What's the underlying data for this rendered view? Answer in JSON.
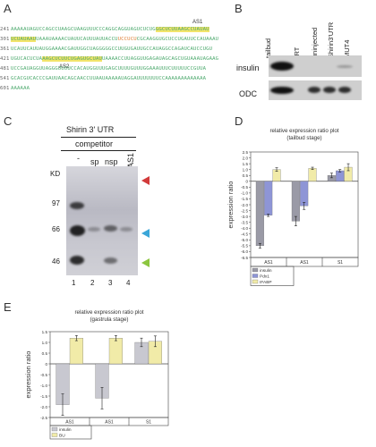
{
  "panels": {
    "A": {
      "letter": "A",
      "as1_label": "AS1",
      "as2_label": "AS2",
      "lines": [
        {
          "num": "241",
          "pre": "AAAAAUAGUCCAGCCUAAGCUAAGUUUCCCAGGCAGGUAGUCUCUG",
          "hl": "GGCUCUUAAGCCUAUAU",
          "post": ""
        },
        {
          "num": "301",
          "pre": "",
          "hl": "UCUAUAAU",
          "post": "UAAAUAAAACUAUUCAUUUAUUACCU",
          "orange": "UCCUCU",
          "post2": "CGCAAGGUGCUCCUGAUUCCAUAAAU"
        },
        {
          "num": "361",
          "pre": "UCAUUCAUUAUGGAAAACGAUUGGCUAGGGGGCCUUGUGAUUGCCAUAGGCCAGAUCAUCCUGU",
          "hl": "",
          "post": ""
        },
        {
          "num": "421",
          "pre": "UGUCACUCUA",
          "hl": "AAGCUCUUCUGAGUGCUAU",
          "post": "UAAAACCUUAGGUUGAGAUAGCAGCUGUAAAUAGAAG"
        },
        {
          "num": "481",
          "pre": "UCCGAUAGGUUAGGGUUUUCCACAUGGUUUGAGCUUUUGUUUGGAAAUUUCUUUUUCCGUUA",
          "hl": "",
          "post": ""
        },
        {
          "num": "541",
          "pre": "GCACGUCACCCGAUUAACAGCAACCUUAAUAAAAAUAGGAUUUUUUUCCAAAAAAAAAAAAA",
          "hl": "",
          "post": ""
        },
        {
          "num": "601",
          "pre": "AAAAAA",
          "hl": "",
          "post": ""
        }
      ]
    },
    "B": {
      "letter": "B",
      "lanes": [
        "tailbud",
        "-RT",
        "uninjected",
        "Shirin3'UTR",
        "MUT4"
      ],
      "rows": [
        "insulin",
        "ODC"
      ]
    },
    "C": {
      "letter": "C",
      "header": "Shirin 3' UTR",
      "subheader": "competitor",
      "lanes": [
        "-",
        "sp",
        "nsp",
        "AS1"
      ],
      "kd": "KD",
      "markers": [
        "97",
        "66",
        "46"
      ],
      "lane_numbers": [
        "1",
        "2",
        "3",
        "4"
      ],
      "arrow_colors": [
        "#d23a3a",
        "#3aa6d8",
        "#8cc63f"
      ]
    },
    "D": {
      "letter": "D",
      "chart_data": {
        "type": "bar",
        "title": "relative expression ratio plot",
        "subtitle": "(tailbud stage)",
        "ylabel": "expression ratio",
        "categories": [
          "AS1",
          "AS1",
          "S1"
        ],
        "ylim": [
          -6.5,
          2.5
        ],
        "yticks": [
          "2.5",
          "2.0",
          "1.5",
          "1.0",
          "0.5",
          "0",
          "-0.5",
          "-1.0",
          "-1.5",
          "-2.0",
          "-2.5",
          "-3.0",
          "-3.5",
          "-4.0",
          "-4.5",
          "-5.0",
          "-5.5",
          "-6.0",
          "-6.5"
        ],
        "series": [
          {
            "name": "insulin",
            "color": "#9a9aa6",
            "values": [
              -5.5,
              -3.4,
              0.5
            ],
            "errors": [
              0.2,
              0.4,
              0.2
            ]
          },
          {
            "name": "Pdx1",
            "color": "#8e95d6",
            "values": [
              -2.9,
              -2.1,
              0.9
            ],
            "errors": [
              0.1,
              0.3,
              0.1
            ]
          },
          {
            "name": "IFABP",
            "color": "#f1eba8",
            "values": [
              1.0,
              1.1,
              1.2
            ],
            "errors": [
              0.15,
              0.1,
              0.3
            ]
          }
        ]
      }
    },
    "E": {
      "letter": "E",
      "chart_data": {
        "type": "bar",
        "title": "relative expression ratio plot",
        "subtitle": "(gastrula stage)",
        "ylabel": "expression ratio",
        "categories": [
          "AS1",
          "AS1",
          "S1"
        ],
        "ylim": [
          -2.5,
          1.5
        ],
        "yticks": [
          "1.5",
          "1.0",
          "0.5",
          "0",
          "-0.5",
          "-1.0",
          "-1.5",
          "-2.0",
          "-2.5"
        ],
        "series": [
          {
            "name": "insulin",
            "color": "#c8c8d0",
            "values": [
              -1.9,
              -1.6,
              1.0
            ],
            "errors": [
              0.5,
              0.5,
              0.2
            ]
          },
          {
            "name": "BU",
            "color": "#f1eba8",
            "values": [
              1.2,
              1.2,
              1.05
            ],
            "errors": [
              0.12,
              0.12,
              0.25
            ]
          }
        ]
      }
    }
  }
}
